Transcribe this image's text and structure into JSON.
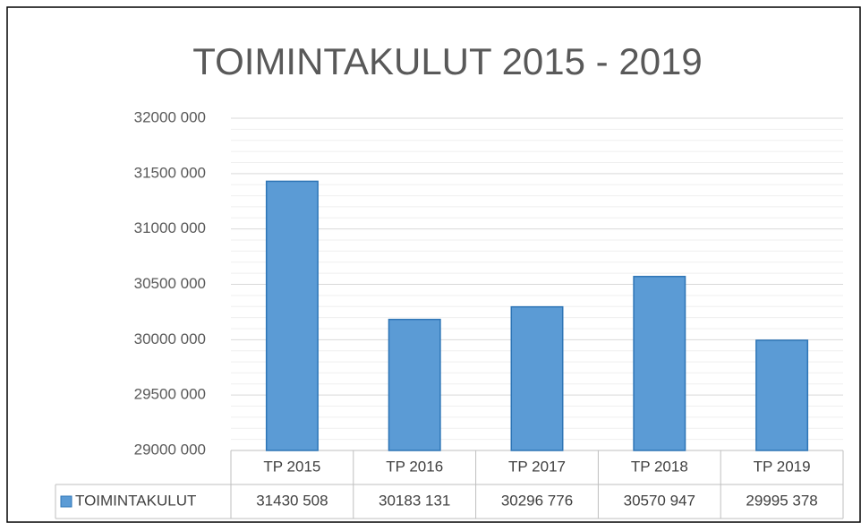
{
  "chart_data": {
    "type": "bar",
    "title": "TOIMINTAKULUT 2015 - 2019",
    "categories": [
      "TP 2015",
      "TP 2016",
      "TP 2017",
      "TP 2018",
      "TP 2019"
    ],
    "series": [
      {
        "name": "TOIMINTAKULUT",
        "color": "#5b9bd5",
        "edge": "#2e75b6",
        "values": [
          31430508,
          30183131,
          30296776,
          30570947,
          29995378
        ],
        "value_labels": [
          "31430 508",
          "30183 131",
          "30296 776",
          "30570 947",
          "29995 378"
        ]
      }
    ],
    "ylim": [
      29000000,
      32000000
    ],
    "yticks": [
      {
        "value": 29000000,
        "label": "29000 000"
      },
      {
        "value": 29500000,
        "label": "29500 000"
      },
      {
        "value": 30000000,
        "label": "30000 000"
      },
      {
        "value": 30500000,
        "label": "30500 000"
      },
      {
        "value": 31000000,
        "label": "31000 000"
      },
      {
        "value": 31500000,
        "label": "31500 000"
      },
      {
        "value": 32000000,
        "label": "32000 000"
      }
    ],
    "yminorticks": [
      29100000,
      29200000,
      29300000,
      29400000,
      29600000,
      29700000,
      29800000,
      29900000,
      30100000,
      30200000,
      30300000,
      30400000,
      30600000,
      30700000,
      30800000,
      30900000,
      31100000,
      31200000,
      31300000,
      31400000,
      31600000,
      31700000,
      31800000,
      31900000
    ],
    "grid": true,
    "minor_grid": true,
    "data_table": true
  }
}
